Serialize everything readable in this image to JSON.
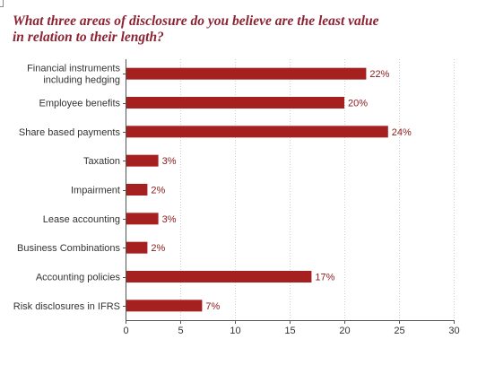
{
  "title_lines": [
    "What three areas of disclosure do you believe are the least value",
    "in relation to their length?"
  ],
  "colors": {
    "bar": "#a5201f",
    "title": "#8b2332",
    "label": "#333333",
    "value_label": "#8b1a1a",
    "grid": "#cfcfcf"
  },
  "chart_data": {
    "type": "bar",
    "orientation": "horizontal",
    "title": "What three areas of disclosure do you believe are the least value in relation to their length?",
    "categories": [
      [
        "Financial instruments",
        "including hedging"
      ],
      [
        "Employee benefits"
      ],
      [
        "Share based payments"
      ],
      [
        "Taxation"
      ],
      [
        "Impairment"
      ],
      [
        "Lease accounting"
      ],
      [
        "Business Combinations"
      ],
      [
        "Accounting policies"
      ],
      [
        "Risk disclosures in IFRS"
      ]
    ],
    "values": [
      22,
      20,
      24,
      3,
      2,
      3,
      2,
      17,
      7
    ],
    "value_labels": [
      "22%",
      "20%",
      "24%",
      "3%",
      "2%",
      "3%",
      "2%",
      "17%",
      "7%"
    ],
    "xlim": [
      0,
      30
    ],
    "xticks": [
      0,
      5,
      10,
      15,
      20,
      25,
      30
    ],
    "xtick_labels": [
      "0",
      "5",
      "10",
      "15",
      "20",
      "25",
      "30"
    ],
    "grid": "vertical-dotted"
  }
}
